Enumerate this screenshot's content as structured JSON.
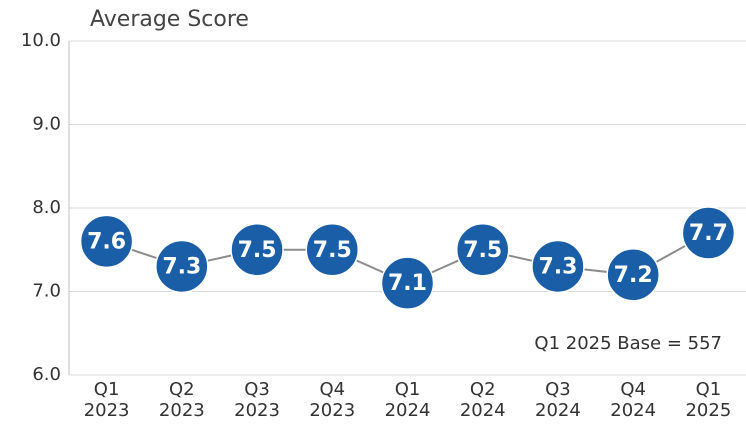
{
  "chart_data": {
    "type": "line",
    "title": "Average Score",
    "categories": [
      "Q1 2023",
      "Q2 2023",
      "Q3 2023",
      "Q4 2023",
      "Q1 2024",
      "Q2 2024",
      "Q3 2024",
      "Q4 2024",
      "Q1 2025"
    ],
    "values": [
      7.6,
      7.3,
      7.5,
      7.5,
      7.1,
      7.5,
      7.3,
      7.2,
      7.7
    ],
    "color": "#1a5ea8",
    "line_color": "#8c8c8c",
    "ylim": [
      6,
      10
    ],
    "yticks": [
      {
        "value": 6,
        "label": "6.0"
      },
      {
        "value": 7,
        "label": "7.0"
      },
      {
        "value": 8,
        "label": "8.0"
      },
      {
        "value": 9,
        "label": "9.0"
      },
      {
        "value": 10,
        "label": "10.0"
      }
    ],
    "grid": true,
    "annotation": "Q1 2025 Base = 557"
  }
}
